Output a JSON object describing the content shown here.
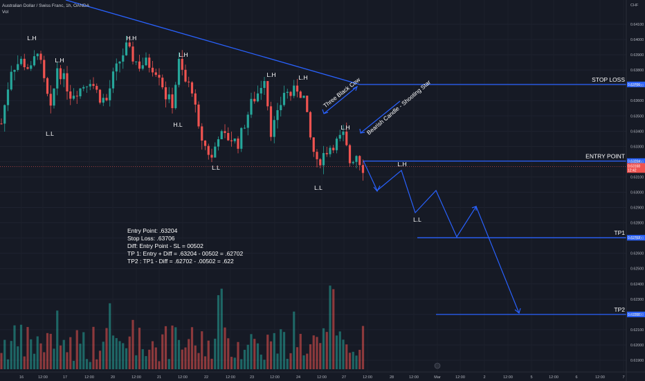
{
  "header": {
    "symbol": "Australian Dollar / Swiss Franc, 1h, OANDA",
    "volume_label": "Vol"
  },
  "colors": {
    "background": "#161a25",
    "bull": "#26a69a",
    "bear": "#ef5350",
    "annotation": "#2962ff",
    "label_box": "#2962ff",
    "current_price_box": "#ef5350"
  },
  "notes": [
    "Entry Point: .63204",
    "Stop Loss: .63706",
    "Diff: Entry Point - SL = 00502",
    "TP 1: Entry + Diff = .63204 - 00502 = .62702",
    "TP2 : TP1 - Diff = .62702 - .00502 = .622"
  ],
  "levels": [
    {
      "name": "STOP LOSS",
      "price": 0.63706,
      "badge": "0.63706"
    },
    {
      "name": "ENTRY POINT",
      "price": 0.63204,
      "badge": "0.63204"
    },
    {
      "name": "TP1",
      "price": 0.62702,
      "badge": "0.62702"
    },
    {
      "name": "TP2",
      "price": 0.622,
      "badge": "0.62200"
    }
  ],
  "current_price": {
    "price": 0.63168,
    "badge": "0.63168",
    "countdown": "12:42"
  },
  "pattern_labels": [
    "Three Black Cow",
    "Bearish Candle - Shooting Star"
  ],
  "swing_labels": [
    {
      "text": "L.H",
      "time": 6,
      "price": 0.6398
    },
    {
      "text": "L.H",
      "time": 16,
      "price": 0.6393
    },
    {
      "text": "L.L",
      "time": 15,
      "price": 0.6338
    },
    {
      "text": "H.H",
      "time": 38,
      "price": 0.64005
    },
    {
      "text": "L.H",
      "time": 54,
      "price": 0.6391
    },
    {
      "text": "H.L",
      "time": 52,
      "price": 0.63425
    },
    {
      "text": "L.H",
      "time": 80,
      "price": 0.6375
    },
    {
      "text": "L.L",
      "time": 64,
      "price": 0.631
    },
    {
      "text": "L.H",
      "time": 89,
      "price": 0.63745
    },
    {
      "text": "L.L",
      "time": 95,
      "price": 0.6304
    },
    {
      "text": "L.H",
      "time": 102,
      "price": 0.6343
    },
    {
      "text": "L.H",
      "time": 118,
      "price": 0.6315
    },
    {
      "text": "L.L",
      "time": 123,
      "price": 0.6286
    }
  ],
  "chart_data": {
    "type": "candlestick",
    "title": "Australian Dollar / Swiss Franc, 1h, OANDA",
    "currency": "CHF",
    "x_tick_labels": [
      "16",
      "12:00",
      "17",
      "12:00",
      "20",
      "12:00",
      "21",
      "12:00",
      "22",
      "12:00",
      "23",
      "12:00",
      "24",
      "12:00",
      "27",
      "12:00",
      "28",
      "12:00",
      "Mar",
      "12:00",
      "2",
      "12:00",
      "5",
      "12:00",
      "6",
      "12:00",
      "7"
    ],
    "y_tick_labels": [
      "0.64100",
      "0.64000",
      "0.63900",
      "0.63800",
      "0.63700",
      "0.63600",
      "0.63500",
      "0.63400",
      "0.63300",
      "0.63200",
      "0.63100",
      "0.63000",
      "0.62900",
      "0.62800",
      "0.62700",
      "0.62600",
      "0.62500",
      "0.62400",
      "0.62300",
      "0.62200",
      "0.62100",
      "0.62000",
      "0.61900"
    ],
    "ylim": [
      0.6185,
      0.6423
    ],
    "price_path": [
      [
        0,
        0.6345
      ],
      [
        3,
        0.6381
      ],
      [
        6,
        0.6386
      ],
      [
        9,
        0.638
      ],
      [
        11,
        0.6394
      ],
      [
        13,
        0.6372
      ],
      [
        15,
        0.6353
      ],
      [
        17,
        0.6382
      ],
      [
        19,
        0.6374
      ],
      [
        21,
        0.6364
      ],
      [
        24,
        0.6368
      ],
      [
        27,
        0.6374
      ],
      [
        30,
        0.6362
      ],
      [
        32,
        0.636
      ],
      [
        34,
        0.6376
      ],
      [
        36,
        0.6386
      ],
      [
        38,
        0.6395
      ],
      [
        40,
        0.6388
      ],
      [
        42,
        0.6383
      ],
      [
        44,
        0.6385
      ],
      [
        46,
        0.6382
      ],
      [
        48,
        0.6378
      ],
      [
        50,
        0.6363
      ],
      [
        52,
        0.6358
      ],
      [
        54,
        0.6385
      ],
      [
        56,
        0.6372
      ],
      [
        58,
        0.6368
      ],
      [
        60,
        0.634
      ],
      [
        62,
        0.633
      ],
      [
        64,
        0.6322
      ],
      [
        66,
        0.6338
      ],
      [
        68,
        0.6336
      ],
      [
        70,
        0.6335
      ],
      [
        72,
        0.6332
      ],
      [
        74,
        0.6345
      ],
      [
        76,
        0.6358
      ],
      [
        78,
        0.6365
      ],
      [
        80,
        0.6376
      ],
      [
        82,
        0.634
      ],
      [
        84,
        0.635
      ],
      [
        86,
        0.6366
      ],
      [
        88,
        0.6364
      ],
      [
        90,
        0.6368
      ],
      [
        92,
        0.6362
      ],
      [
        94,
        0.6335
      ],
      [
        96,
        0.6318
      ],
      [
        98,
        0.6325
      ],
      [
        100,
        0.633
      ],
      [
        102,
        0.6333
      ],
      [
        104,
        0.6337
      ],
      [
        106,
        0.632
      ],
      [
        108,
        0.6325
      ],
      [
        110,
        0.6316
      ]
    ],
    "projection_path": [
      [
        0.632,
        0.63
      ],
      [
        0.632,
        0.63
      ],
      [
        0.6322,
        0.63
      ]
    ],
    "volume_note": "Volume histogram below price, bars colored by candle direction"
  }
}
